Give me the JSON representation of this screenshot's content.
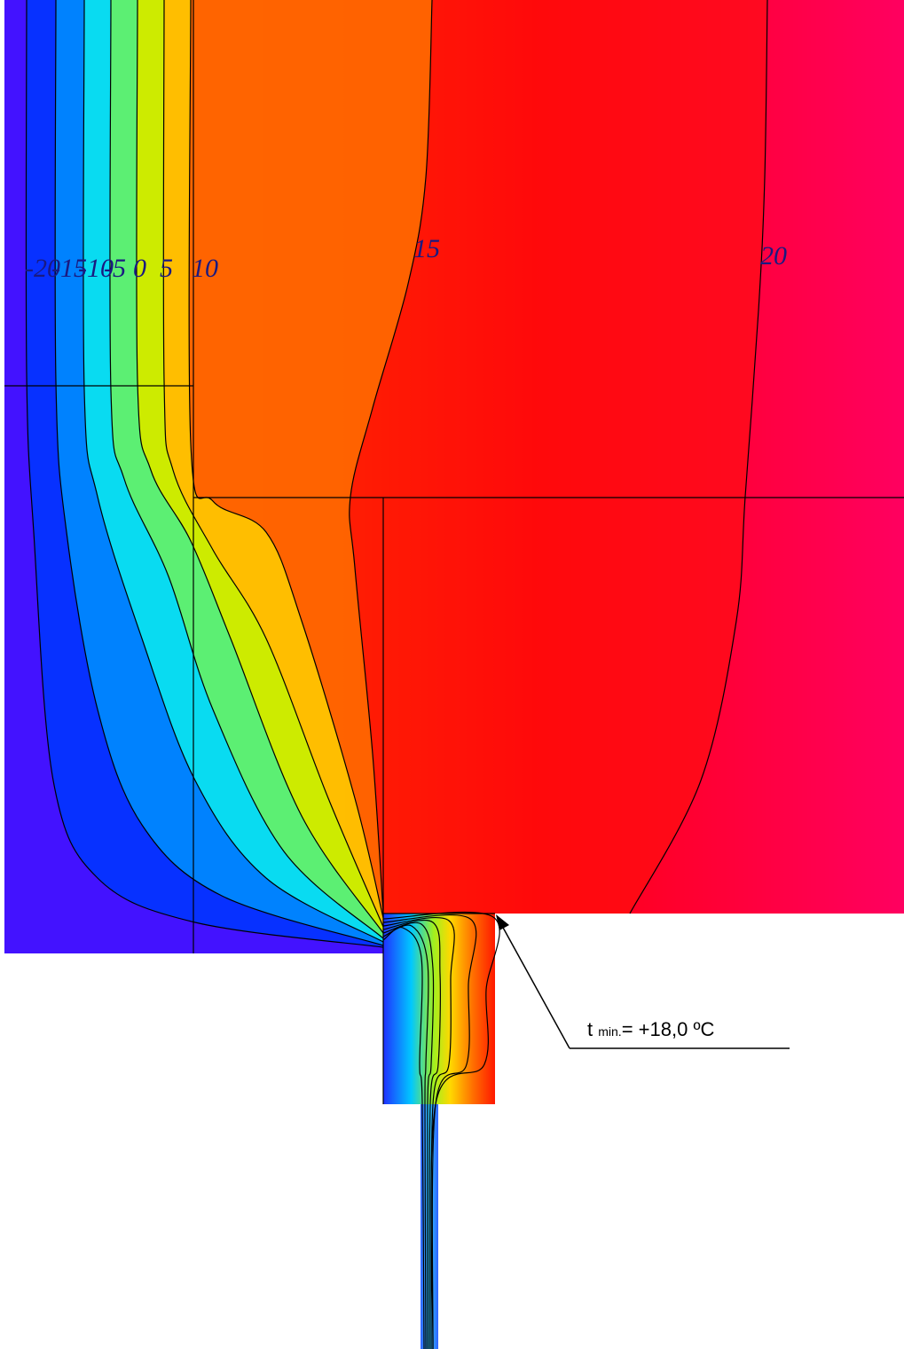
{
  "isotherm_labels": [
    "-20",
    "-15",
    "-10",
    "-5",
    "0",
    "5",
    "10",
    "15",
    "20"
  ],
  "annotation": {
    "symbol": "t",
    "subscript": "min.",
    "value": "= +18,0 ºC"
  }
}
